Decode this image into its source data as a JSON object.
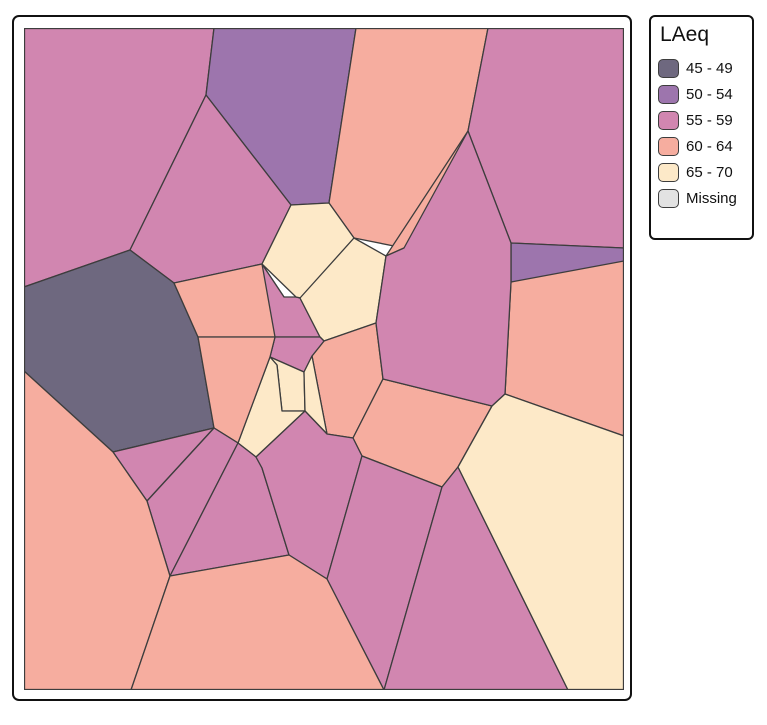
{
  "legend": {
    "title": "LAeq",
    "items": [
      {
        "label": "45 - 49",
        "color": "#6e687f"
      },
      {
        "label": "50 - 54",
        "color": "#9d75ad"
      },
      {
        "label": "55 - 59",
        "color": "#d186b0"
      },
      {
        "label": "60 - 64",
        "color": "#f6ad9f"
      },
      {
        "label": "65 - 70",
        "color": "#fde9c8"
      },
      {
        "label": "Missing",
        "color": "#e2e2e2"
      }
    ]
  },
  "map": {
    "type": "voronoi-choropleth",
    "fill_classes": [
      "55 - 59",
      "50 - 54",
      "60 - 64",
      "55 - 59",
      "55 - 59",
      "45 - 49",
      "60 - 64",
      "55 - 59",
      "65 - 70",
      "65 - 70",
      "60 - 64",
      "55 - 59",
      "60 - 64",
      "50 - 54",
      "60 - 64",
      "55 - 59",
      "65 - 70",
      "65 - 70",
      "65 - 70",
      "60 - 64",
      "60 - 64",
      "60 - 64",
      "55 - 59",
      "55 - 59",
      "55 - 59",
      "60 - 64",
      "55 - 59",
      "55 - 59",
      "60 - 64",
      "55 - 59",
      "55 - 59",
      "65 - 70"
    ]
  }
}
